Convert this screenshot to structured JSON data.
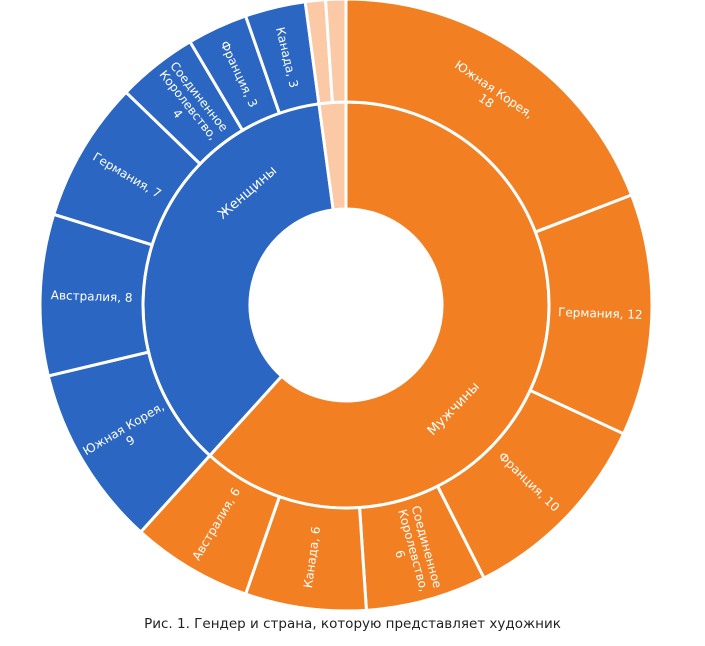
{
  "chart_data": {
    "type": "sunburst",
    "caption": "Рис. 1. Гендер и страна, которую представляет художник",
    "colors": {
      "Мужчины": "#f28023",
      "Женщины": "#2a66c2",
      "other": "#fbc9a6"
    },
    "groups": [
      {
        "name": "Мужчины",
        "label": "Мужчины",
        "children": [
          {
            "name": "Южная Корея",
            "value": 18,
            "label": "Южная Корея, 18"
          },
          {
            "name": "Германия",
            "value": 12,
            "label": "Германия, 12"
          },
          {
            "name": "Франция",
            "value": 10,
            "label": "Франция, 10"
          },
          {
            "name": "Соединенное Королевство",
            "value": 6,
            "label": "Соединенное Королевство, 6"
          },
          {
            "name": "Канада",
            "value": 6,
            "label": "Канада, 6"
          },
          {
            "name": "Австралия",
            "value": 6,
            "label": "Австралия, 6"
          }
        ]
      },
      {
        "name": "Женщины",
        "label": "Женщины",
        "children": [
          {
            "name": "Южная Корея",
            "value": 9,
            "label": "Южная Корея, 9"
          },
          {
            "name": "Австралия",
            "value": 8,
            "label": "Австралия, 8"
          },
          {
            "name": "Германия",
            "value": 7,
            "label": "Германия, 7"
          },
          {
            "name": "Соединенное Королевство",
            "value": 4,
            "label": "Соединенное Королевство, 4"
          },
          {
            "name": "Франция",
            "value": 3,
            "label": "Франция, 3"
          },
          {
            "name": "Канада",
            "value": 3,
            "label": "Канада, 3"
          }
        ]
      },
      {
        "name": "other",
        "label": "",
        "children": [
          {
            "name": "",
            "value": 1,
            "label": ""
          },
          {
            "name": "",
            "value": 1,
            "label": ""
          }
        ]
      }
    ]
  }
}
